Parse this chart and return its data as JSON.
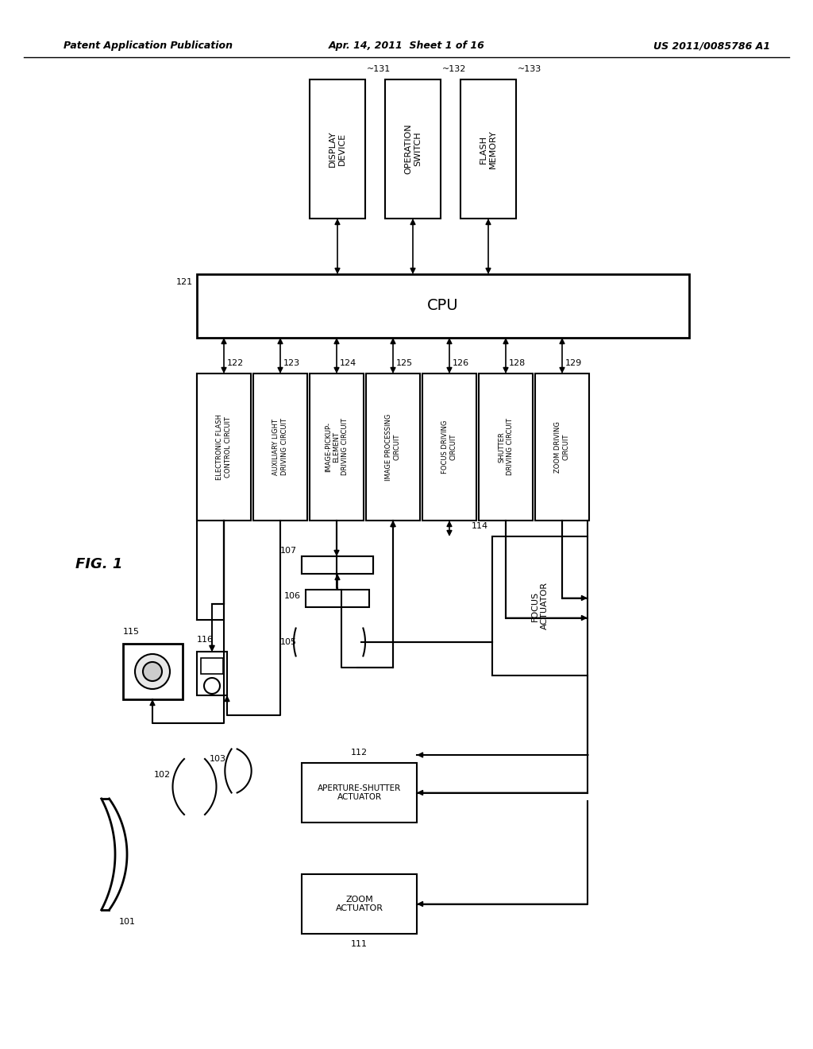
{
  "header_left": "Patent Application Publication",
  "header_center": "Apr. 14, 2011  Sheet 1 of 16",
  "header_right": "US 2011/0085786 A1",
  "fig_label": "FIG. 1",
  "bg": "#ffffff",
  "lc": "#000000"
}
